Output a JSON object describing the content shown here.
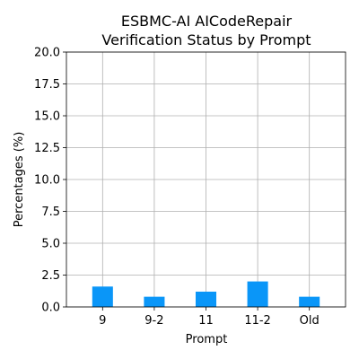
{
  "chart_data": {
    "type": "bar",
    "title_line1": "ESBMC-AI AICodeRepair",
    "title_line2": "Verification Status by Prompt",
    "xlabel": "Prompt",
    "ylabel": "Percentages (%)",
    "categories": [
      "9",
      "9-2",
      "11",
      "11-2",
      "Old"
    ],
    "values": [
      1.6,
      0.8,
      1.2,
      2.0,
      0.8
    ],
    "ylim": [
      0,
      20
    ],
    "yticks": [
      0.0,
      2.5,
      5.0,
      7.5,
      10.0,
      12.5,
      15.0,
      17.5,
      20.0
    ],
    "ytick_labels": [
      "0.0",
      "2.5",
      "5.0",
      "7.5",
      "10.0",
      "12.5",
      "15.0",
      "17.5",
      "20.0"
    ],
    "grid": true,
    "bar_color": "#0a96f8"
  }
}
